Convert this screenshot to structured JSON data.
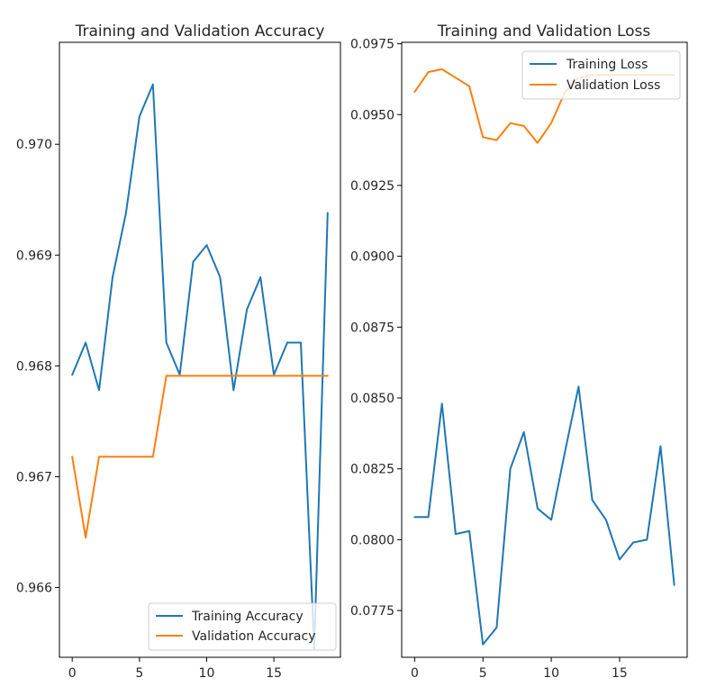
{
  "chart_data": [
    {
      "type": "line",
      "title": "Training and Validation Accuracy",
      "xlabel": "",
      "ylabel": "",
      "xlim": [
        -0.95,
        19.95
      ],
      "ylim": [
        0.96537,
        0.97092
      ],
      "xticks": [
        0,
        5,
        10,
        15
      ],
      "xtick_labels": [
        "0",
        "5",
        "10",
        "15"
      ],
      "yticks": [
        0.966,
        0.967,
        0.968,
        0.969,
        0.97
      ],
      "ytick_labels": [
        "0.966",
        "0.967",
        "0.968",
        "0.969",
        "0.970"
      ],
      "legend_position": "lower-right",
      "grid": false,
      "x": [
        0,
        1,
        2,
        3,
        4,
        5,
        6,
        7,
        8,
        9,
        10,
        11,
        12,
        13,
        14,
        15,
        16,
        17,
        18,
        19
      ],
      "series": [
        {
          "name": "Training Accuracy",
          "color": "#1f77b4",
          "values": [
            0.96792,
            0.96821,
            0.96778,
            0.9688,
            0.96938,
            0.97025,
            0.97054,
            0.96821,
            0.96792,
            0.96894,
            0.96909,
            0.9688,
            0.96778,
            0.96851,
            0.9688,
            0.96792,
            0.96821,
            0.96821,
            0.96545,
            0.96938
          ]
        },
        {
          "name": "Validation Accuracy",
          "color": "#ff7f0e",
          "values": [
            0.96718,
            0.96645,
            0.96718,
            0.96718,
            0.96718,
            0.96718,
            0.96718,
            0.96791,
            0.96791,
            0.96791,
            0.96791,
            0.96791,
            0.96791,
            0.96791,
            0.96791,
            0.96791,
            0.96791,
            0.96791,
            0.96791,
            0.96791
          ]
        }
      ]
    },
    {
      "type": "line",
      "title": "Training and Validation Loss",
      "xlabel": "",
      "ylabel": "",
      "xlim": [
        -0.95,
        19.95
      ],
      "ylim": [
        0.07585,
        0.09755
      ],
      "xticks": [
        0,
        5,
        10,
        15
      ],
      "xtick_labels": [
        "0",
        "5",
        "10",
        "15"
      ],
      "yticks": [
        0.0775,
        0.08,
        0.0825,
        0.085,
        0.0875,
        0.09,
        0.0925,
        0.095,
        0.0975
      ],
      "ytick_labels": [
        "0.0775",
        "0.0800",
        "0.0825",
        "0.0850",
        "0.0875",
        "0.0900",
        "0.0925",
        "0.0950",
        "0.0975"
      ],
      "legend_position": "upper-right",
      "grid": false,
      "x": [
        0,
        1,
        2,
        3,
        4,
        5,
        6,
        7,
        8,
        9,
        10,
        11,
        12,
        13,
        14,
        15,
        16,
        17,
        18,
        19
      ],
      "series": [
        {
          "name": "Training Loss",
          "color": "#1f77b4",
          "values": [
            0.0808,
            0.0808,
            0.0848,
            0.0802,
            0.0803,
            0.0763,
            0.0769,
            0.0825,
            0.0838,
            0.0811,
            0.0807,
            0.0831,
            0.0854,
            0.0814,
            0.0807,
            0.0793,
            0.0799,
            0.08,
            0.0833,
            0.0784
          ]
        },
        {
          "name": "Validation Loss",
          "color": "#ff7f0e",
          "values": [
            0.0958,
            0.0965,
            0.0966,
            0.0963,
            0.096,
            0.0942,
            0.0941,
            0.0947,
            0.0946,
            0.094,
            0.0947,
            0.0958,
            0.0963,
            0.0964,
            0.0964,
            0.0964,
            0.0964,
            0.0964,
            0.0964,
            0.0964
          ]
        }
      ]
    }
  ]
}
